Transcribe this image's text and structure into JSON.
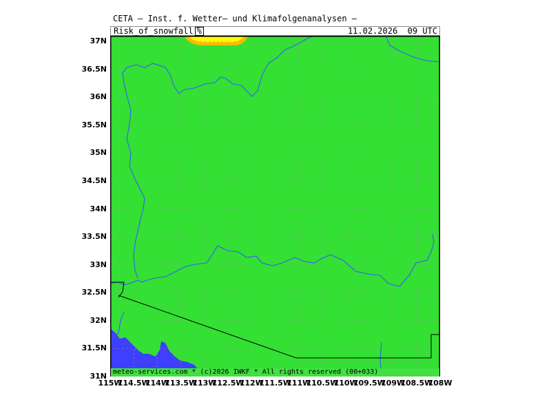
{
  "header": {
    "title": "CETA — Inst. f. Wetter— und Klimafolgenanalysen —",
    "parameter": "Risk_of_snowfall",
    "unit": "%",
    "valid_time": "11.02.2026  09 UTC"
  },
  "footer": {
    "copyright": "meteo-services.com * (c)2026 IWKF * All rights reserved (00+033)"
  },
  "colors": {
    "no_risk": "#33e033",
    "low_risk_yellow": "#ffff00",
    "orange": "#ffbb00",
    "water_blue": "#3f3fff",
    "rivers": "#3a5aff",
    "borders": "#000000",
    "grid": "#a0a0a0"
  },
  "map": {
    "lat_labels": [
      "37N",
      "36.5N",
      "36N",
      "35.5N",
      "35N",
      "34.5N",
      "34N",
      "33.5N",
      "33N",
      "32.5N",
      "32N",
      "31.5N",
      "31N"
    ],
    "lon_labels": [
      "115W",
      "114.5W",
      "114W",
      "113.5W",
      "113W",
      "112.5W",
      "112W",
      "111.5W",
      "111W",
      "110.5W",
      "110W",
      "109.5W",
      "109W",
      "108.5W",
      "108W"
    ],
    "extent": {
      "lon_min": -115,
      "lon_max": -108,
      "lat_min": 31,
      "lat_max": 37.1
    },
    "grid": true
  }
}
